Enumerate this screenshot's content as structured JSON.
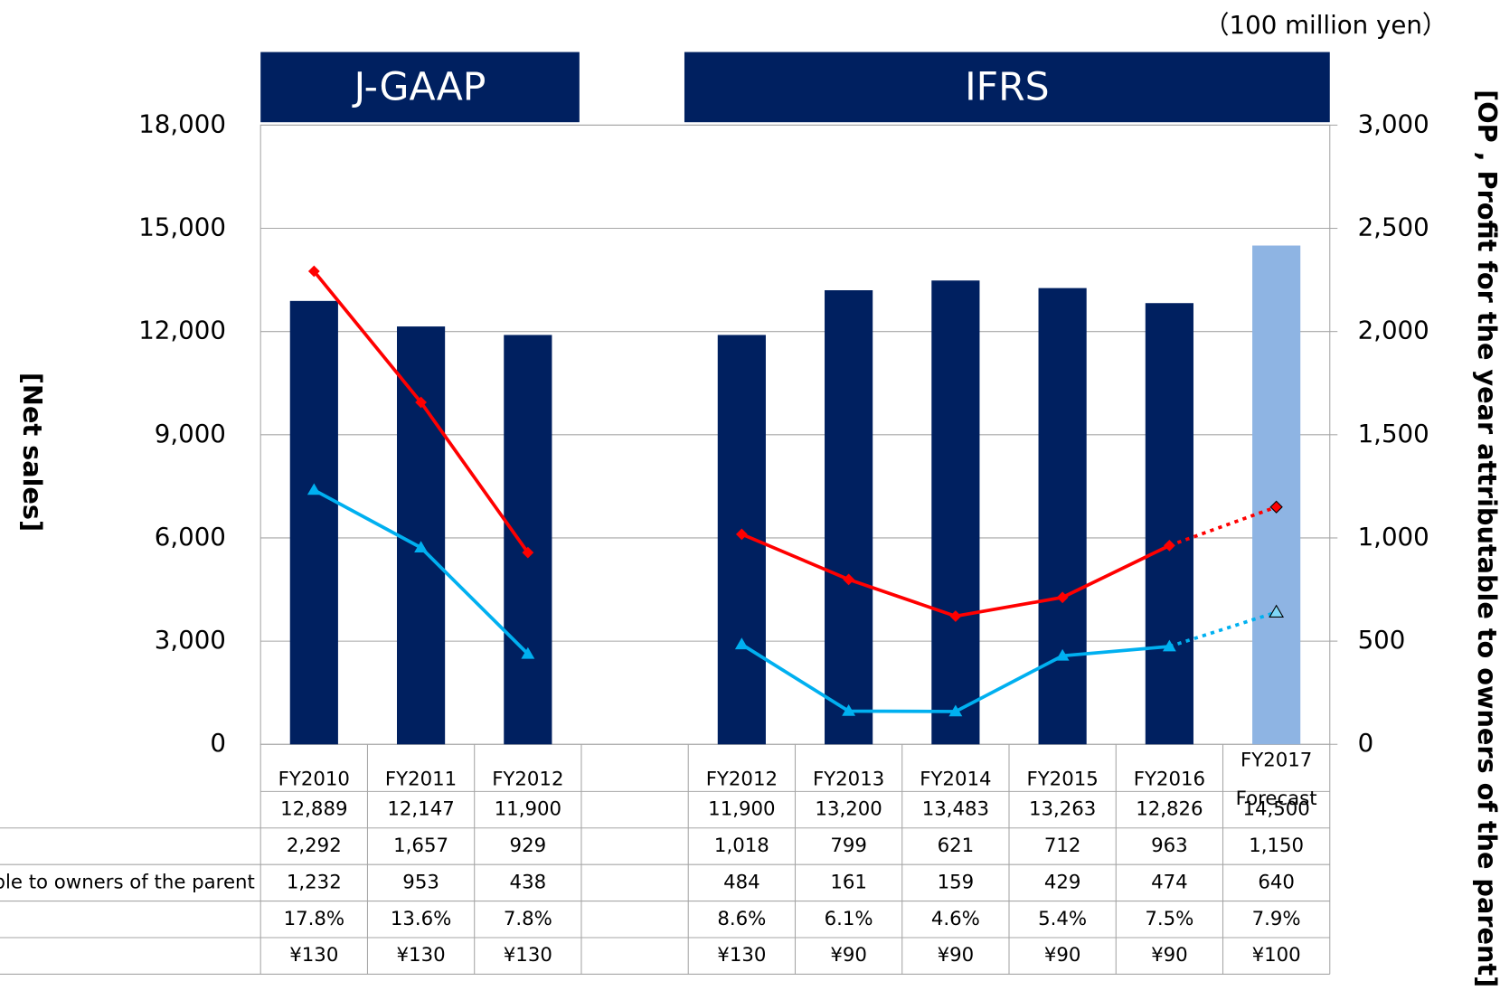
{
  "chart_data": {
    "type": "bar",
    "unit_label": "（100 million yen）",
    "y_label": "[Net sales]",
    "y2_label": "[OP , Profit for the year attributable to owners of the parent]",
    "banners": [
      "J-GAAP",
      "IFRS"
    ],
    "categories": [
      "FY2010",
      "FY2011",
      "FY2012",
      null,
      "FY2012",
      "FY2013",
      "FY2014",
      "FY2015",
      "FY2016",
      "FY2017\nForecast"
    ],
    "series": [
      {
        "type": "bar",
        "color": "#002060",
        "last_color": "#8eb4e3",
        "values": [
          12889,
          12147,
          11900,
          null,
          11900,
          13200,
          13483,
          13263,
          12826,
          14500
        ]
      },
      {
        "type": "line",
        "axis": "y2",
        "color": "#ff0000",
        "marker": "diamond",
        "last_segment": "dotted",
        "values": [
          2292,
          1657,
          929,
          null,
          1018,
          799,
          621,
          712,
          963,
          1150
        ]
      },
      {
        "type": "line",
        "axis": "y2",
        "color": "#00b0f0",
        "marker": "triangle",
        "last_segment": "dotted",
        "values": [
          1232,
          953,
          438,
          null,
          484,
          161,
          159,
          429,
          474,
          640
        ]
      }
    ],
    "ylim": [
      0,
      18000
    ],
    "yticks": [
      {
        "value": 0,
        "label": "0"
      },
      {
        "value": 3000,
        "label": "3,000"
      },
      {
        "value": 6000,
        "label": "6,000"
      },
      {
        "value": 9000,
        "label": "9,000"
      },
      {
        "value": 12000,
        "label": "12,000"
      },
      {
        "value": 15000,
        "label": "15,000"
      },
      {
        "value": 18000,
        "label": "18,000"
      }
    ],
    "y2lim": [
      0,
      3000
    ],
    "y2ticks": [
      {
        "value": 0,
        "label": "0"
      },
      {
        "value": 500,
        "label": "500"
      },
      {
        "value": 1000,
        "label": "1,000"
      },
      {
        "value": 1500,
        "label": "1,500"
      },
      {
        "value": 2000,
        "label": "2,000"
      },
      {
        "value": 2500,
        "label": "2,500"
      },
      {
        "value": 3000,
        "label": "3,000"
      }
    ],
    "grid": true,
    "table": {
      "row_labels": [
        null,
        null,
        "ble to owners of the parent",
        null,
        null
      ],
      "rows": [
        [
          "12,889",
          "12,147",
          "11,900",
          null,
          "11,900",
          "13,200",
          "13,483",
          "13,263",
          "12,826",
          "14,500"
        ],
        [
          "2,292",
          "1,657",
          "929",
          null,
          "1,018",
          "799",
          "621",
          "712",
          "963",
          "1,150"
        ],
        [
          "1,232",
          "953",
          "438",
          null,
          "484",
          "161",
          "159",
          "429",
          "474",
          "640"
        ],
        [
          "17.8%",
          "13.6%",
          "7.8%",
          null,
          "8.6%",
          "6.1%",
          "4.6%",
          "5.4%",
          "7.5%",
          "7.9%"
        ],
        [
          "¥130",
          "¥130",
          "¥130",
          null,
          "¥130",
          "¥90",
          "¥90",
          "¥90",
          "¥90",
          "¥100"
        ]
      ]
    }
  }
}
